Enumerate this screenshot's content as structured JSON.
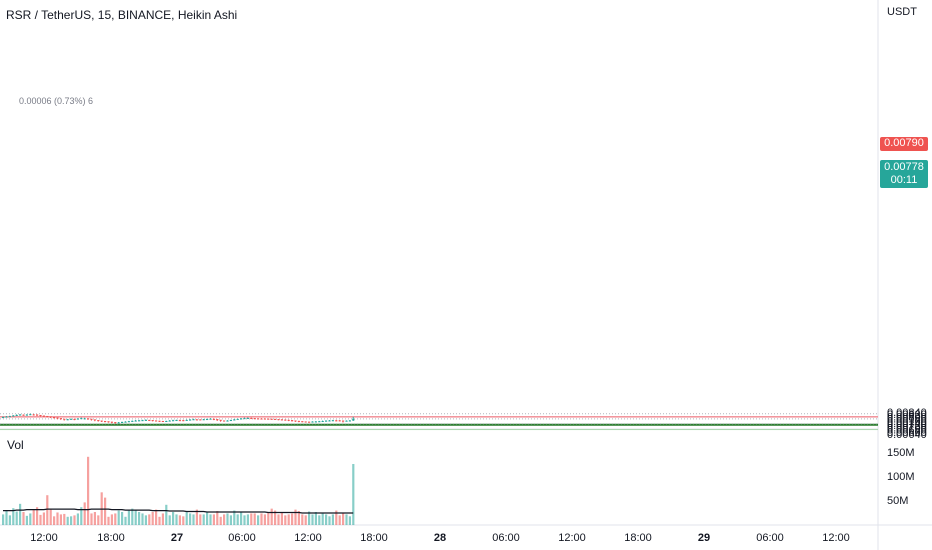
{
  "header": {
    "title": "RSR / TetherUS, 15, BINANCE, Heikin Ashi",
    "quote_currency": "USDT",
    "measure_annotation": "0.00006 (0.73%) 6"
  },
  "volume_pane": {
    "label": "Vol",
    "tick_labels": [
      "150M",
      "100M",
      "50M"
    ]
  },
  "price_tags": {
    "resistance": "0.00790",
    "last_price": "0.00778",
    "countdown": "00:11"
  },
  "colors": {
    "up": "#26a69a",
    "down": "#ef5350",
    "resistance_zone": "#f0808a",
    "support_zone": "#8fd08f",
    "support_line": "#2e7d32",
    "volume_ma": "#131722",
    "grid_dotted": "#b2b5be",
    "axis_text": "#131722"
  },
  "chart_data": [
    {
      "type": "candlestick",
      "title": "RSR / TetherUS, 15, BINANCE, Heikin Ashi",
      "y_axis": {
        "unit": "USDT",
        "range": [
          0.0063,
          0.0086
        ],
        "tick_labels": [
          "0.00840",
          "0.00820",
          "0.00800",
          "0.00780",
          "0.00760",
          "0.00740",
          "0.00720",
          "0.00700",
          "0.00680",
          "0.00660",
          "0.00640"
        ]
      },
      "x_axis": {
        "tick_labels": [
          "12:00",
          "18:00",
          "27",
          "06:00",
          "12:00",
          "18:00",
          "28",
          "06:00",
          "12:00",
          "18:00",
          "29",
          "06:00",
          "12:00"
        ]
      },
      "series": [
        {
          "close": [
            0.00794,
            0.00798,
            0.00802,
            0.00808,
            0.00813,
            0.00817,
            0.00812,
            0.00816,
            0.0082,
            0.00816,
            0.0081,
            0.00806,
            0.00802,
            0.00797,
            0.00792,
            0.00787,
            0.00782,
            0.00776,
            0.0077,
            0.00774,
            0.00778,
            0.00773,
            0.0078,
            0.00784,
            0.00782,
            0.00776,
            0.0077,
            0.00764,
            0.0076,
            0.00757,
            0.00754,
            0.0075,
            0.00746,
            0.00741,
            0.00745,
            0.00749,
            0.00752,
            0.00756,
            0.00759,
            0.00762,
            0.00764,
            0.00766,
            0.00768,
            0.00765,
            0.00762,
            0.00759,
            0.00757,
            0.00755,
            0.00758,
            0.00762,
            0.00765,
            0.00767,
            0.00765,
            0.00763,
            0.00768,
            0.00771,
            0.00774,
            0.00772,
            0.0077,
            0.00774,
            0.00776,
            0.00779,
            0.00773,
            0.00766,
            0.0076,
            0.00758,
            0.00762,
            0.00767,
            0.00772,
            0.00777,
            0.00781,
            0.00784,
            0.00786,
            0.00783,
            0.0078,
            0.00781,
            0.0078,
            0.00779,
            0.00778,
            0.00776,
            0.00774,
            0.00772,
            0.0077,
            0.00768,
            0.00765,
            0.00761,
            0.00758,
            0.00755,
            0.00753,
            0.0075,
            0.00751,
            0.00753,
            0.00754,
            0.00756,
            0.00758,
            0.00761,
            0.00763,
            0.00765,
            0.00763,
            0.00762,
            0.00759,
            0.00761,
            0.00763,
            0.00778
          ],
          "high": [
            0.00799,
            0.00803,
            0.00806,
            0.00812,
            0.00818,
            0.00821,
            0.00818,
            0.0082,
            0.00825,
            0.00821,
            0.00815,
            0.00811,
            0.00805,
            0.00801,
            0.00795,
            0.0079,
            0.00785,
            0.00781,
            0.00776,
            0.00777,
            0.00781,
            0.00781,
            0.00784,
            0.00789,
            0.00787,
            0.00782,
            0.00774,
            0.00768,
            0.00765,
            0.00761,
            0.00758,
            0.00755,
            0.00751,
            0.00749,
            0.00749,
            0.00753,
            0.00756,
            0.00759,
            0.00763,
            0.00767,
            0.00768,
            0.00769,
            0.00773,
            0.0077,
            0.00766,
            0.00763,
            0.0076,
            0.00759,
            0.00761,
            0.00766,
            0.00769,
            0.0077,
            0.0077,
            0.00769,
            0.00771,
            0.00775,
            0.00779,
            0.00777,
            0.00774,
            0.00777,
            0.0078,
            0.00784,
            0.00782,
            0.00773,
            0.00765,
            0.00762,
            0.00766,
            0.00769,
            0.00777,
            0.00781,
            0.00785,
            0.00789,
            0.0079,
            0.00789,
            0.00785,
            0.00784,
            0.00784,
            0.00783,
            0.00782,
            0.0078,
            0.00779,
            0.00776,
            0.00774,
            0.00772,
            0.00769,
            0.00765,
            0.00762,
            0.00759,
            0.00756,
            0.00754,
            0.00754,
            0.00756,
            0.00757,
            0.00759,
            0.00762,
            0.00765,
            0.00767,
            0.00768,
            0.00769,
            0.00766,
            0.00763,
            0.00764,
            0.00766,
            0.00796
          ],
          "low": [
            0.0079,
            0.00792,
            0.00795,
            0.008,
            0.00804,
            0.00809,
            0.00807,
            0.00809,
            0.00812,
            0.00808,
            0.00803,
            0.00799,
            0.00795,
            0.0079,
            0.00785,
            0.0078,
            0.00774,
            0.00769,
            0.00762,
            0.00766,
            0.0077,
            0.00766,
            0.00773,
            0.00777,
            0.00774,
            0.00768,
            0.00762,
            0.00756,
            0.00752,
            0.00749,
            0.00746,
            0.00743,
            0.00737,
            0.00733,
            0.00739,
            0.00744,
            0.00747,
            0.0075,
            0.00753,
            0.00756,
            0.00758,
            0.0076,
            0.00762,
            0.00758,
            0.00755,
            0.00752,
            0.0075,
            0.00749,
            0.00752,
            0.00756,
            0.00759,
            0.00761,
            0.00759,
            0.00756,
            0.00762,
            0.00765,
            0.00768,
            0.00765,
            0.00764,
            0.00768,
            0.0077,
            0.00772,
            0.00766,
            0.00758,
            0.00752,
            0.00752,
            0.00756,
            0.00761,
            0.00766,
            0.00771,
            0.00775,
            0.00778,
            0.00779,
            0.00777,
            0.00774,
            0.00775,
            0.00774,
            0.00772,
            0.00771,
            0.00769,
            0.00767,
            0.00765,
            0.00763,
            0.00761,
            0.00757,
            0.00753,
            0.0075,
            0.00747,
            0.00746,
            0.00744,
            0.00745,
            0.00748,
            0.00749,
            0.0075,
            0.00752,
            0.00755,
            0.00757,
            0.00759,
            0.00756,
            0.00755,
            0.00745,
            0.00754,
            0.00757,
            0.00759
          ]
        }
      ],
      "horizontal_levels": [
        {
          "kind": "resistance_zone",
          "from": 0.0079,
          "to": 0.00802
        },
        {
          "kind": "support_zone",
          "from": 0.00716,
          "to": 0.00732
        },
        {
          "kind": "support_line",
          "value": 0.00724
        },
        {
          "kind": "support_zone",
          "from": 0.00676,
          "to": 0.00682
        },
        {
          "kind": "dotted_level",
          "value": 0.00824
        },
        {
          "kind": "dotted_level",
          "value": 0.00778
        },
        {
          "kind": "dotted_level",
          "value": 0.00733
        }
      ]
    },
    {
      "type": "bar",
      "title": "Vol",
      "y_axis": {
        "range": [
          0,
          160
        ],
        "unit": "M",
        "tick_labels": [
          "150M",
          "100M",
          "50M"
        ]
      },
      "values": [
        20,
        28,
        18,
        33,
        26,
        42,
        25,
        17,
        22,
        30,
        35,
        19,
        24,
        60,
        30,
        16,
        24,
        20,
        21,
        15,
        16,
        18,
        22,
        35,
        45,
        140,
        22,
        25,
        18,
        66,
        55,
        15,
        20,
        22,
        28,
        25,
        15,
        28,
        32,
        30,
        25,
        22,
        18,
        20,
        25,
        30,
        15,
        22,
        40,
        18,
        25,
        20,
        18,
        16,
        25,
        22,
        20,
        30,
        20,
        20,
        26,
        20,
        20,
        27,
        15,
        20,
        22,
        18,
        28,
        20,
        25,
        18,
        20,
        22,
        22,
        18,
        22,
        20,
        25,
        32,
        28,
        20,
        25,
        18,
        20,
        22,
        30,
        27,
        20,
        18,
        26,
        20,
        25,
        18,
        22,
        20,
        16,
        20,
        28,
        18,
        22,
        20,
        16,
        125
      ],
      "ma": [
        28,
        28,
        28,
        28,
        29,
        29,
        29,
        30,
        30,
        30,
        30,
        30,
        30,
        31,
        31,
        31,
        31,
        31,
        31,
        31,
        31,
        31,
        30,
        30,
        30,
        30,
        31,
        31,
        31,
        31,
        31,
        31,
        30,
        30,
        30,
        30,
        29,
        29,
        29,
        29,
        29,
        29,
        29,
        29,
        28,
        28,
        28,
        28,
        28,
        27,
        27,
        27,
        27,
        27,
        26,
        26,
        26,
        26,
        26,
        26,
        25,
        25,
        25,
        25,
        25,
        25,
        25,
        25,
        25,
        25,
        25,
        25,
        25,
        25,
        25,
        25,
        25,
        25,
        24,
        24,
        24,
        24,
        24,
        24,
        24,
        24,
        24,
        24,
        23,
        23,
        23,
        23,
        23,
        23,
        23,
        23,
        23,
        23,
        23,
        23,
        23,
        23,
        23,
        23
      ]
    }
  ]
}
